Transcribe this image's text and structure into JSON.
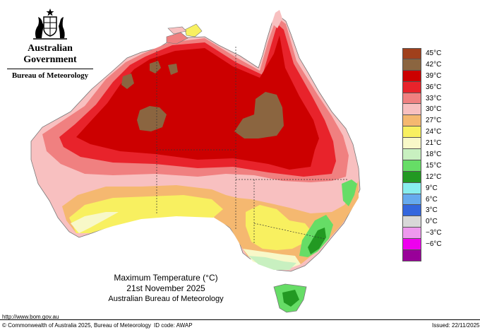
{
  "header": {
    "government": "Australian Government",
    "bureau": "Bureau of Meteorology"
  },
  "map": {
    "title": "Maximum Temperature (°C)",
    "date": "21st November 2025",
    "source": "Australian Bureau of Meteorology",
    "colors": {
      "42_45": "#8b6540",
      "39_42": "#cc0000",
      "36_39": "#e8232b",
      "33_36": "#f08080",
      "30_33": "#f8c0c0",
      "27_30": "#f5b870",
      "24_27": "#f8f060",
      "21_24": "#f8f8c8",
      "18_21": "#c8f0c0",
      "15_18": "#66dd66",
      "12_15": "#229922",
      "ocean": "#ffffff"
    }
  },
  "legend": {
    "items": [
      {
        "label": "45°C",
        "color": "#a0401c"
      },
      {
        "label": "42°C",
        "color": "#8b6540"
      },
      {
        "label": "39°C",
        "color": "#cc0000"
      },
      {
        "label": "36°C",
        "color": "#e8232b"
      },
      {
        "label": "33°C",
        "color": "#f08080"
      },
      {
        "label": "30°C",
        "color": "#f8c0c0"
      },
      {
        "label": "27°C",
        "color": "#f5b870"
      },
      {
        "label": "24°C",
        "color": "#f8f060"
      },
      {
        "label": "21°C",
        "color": "#f8f8c8"
      },
      {
        "label": "18°C",
        "color": "#c8f0c0"
      },
      {
        "label": "15°C",
        "color": "#66dd66"
      },
      {
        "label": "12°C",
        "color": "#229922"
      },
      {
        "label": "9°C",
        "color": "#88eeee"
      },
      {
        "label": "6°C",
        "color": "#66aaee"
      },
      {
        "label": "3°C",
        "color": "#3366dd"
      },
      {
        "label": "0°C",
        "color": "#d8d8d8"
      },
      {
        "label": "−3°C",
        "color": "#ee99ee"
      },
      {
        "label": "−6°C",
        "color": "#ee00ee"
      },
      {
        "label": "",
        "color": "#990099"
      }
    ]
  },
  "footer": {
    "url": "http://www.bom.gov.au",
    "copyright": "© Commonwealth of Australia 2025, Bureau of Meteorology",
    "id_code": "ID code: AWAP",
    "issued": "Issued: 22/11/2025"
  }
}
